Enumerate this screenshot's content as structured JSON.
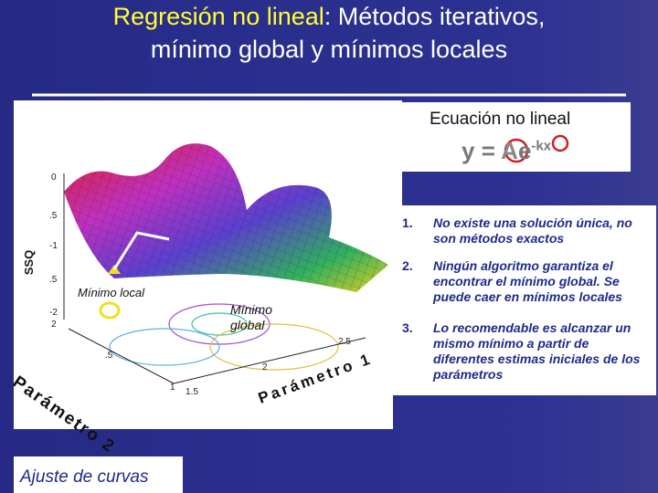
{
  "title": {
    "highlight": "Regresión no lineal",
    "line1_rest": ": Métodos iterativos,",
    "line2": "mínimo global y mínimos locales"
  },
  "equation": {
    "label": "Ecuación no lineal",
    "y": "y",
    "equals": "=",
    "A": "A",
    "e": "e",
    "exponent": "-kx"
  },
  "plot": {
    "z_axis_label": "SSQ",
    "tick_labels": [
      "0",
      ".5",
      "-1",
      ".5",
      "-2",
      "2",
      ".5",
      "2.5",
      "2",
      "1",
      "1.5"
    ],
    "local_minimum": "Mínimo local",
    "global_minimum": "Mínimo global",
    "x_axis_label": "Parámetro 2",
    "y_axis_label": "Parámetro 1"
  },
  "bullets": [
    {
      "number": "1.",
      "text": "No existe una solución única, no son métodos exactos"
    },
    {
      "number": "2.",
      "text": "Ningún algoritmo garantiza el encontrar el mínimo global. Se puede caer en mínimos locales"
    },
    {
      "number": "3.",
      "text": "Lo recomendable es alcanzar un mismo mínimo a partir de diferentes estimas iniciales de los parámetros"
    }
  ],
  "footer": "Ajuste de curvas"
}
